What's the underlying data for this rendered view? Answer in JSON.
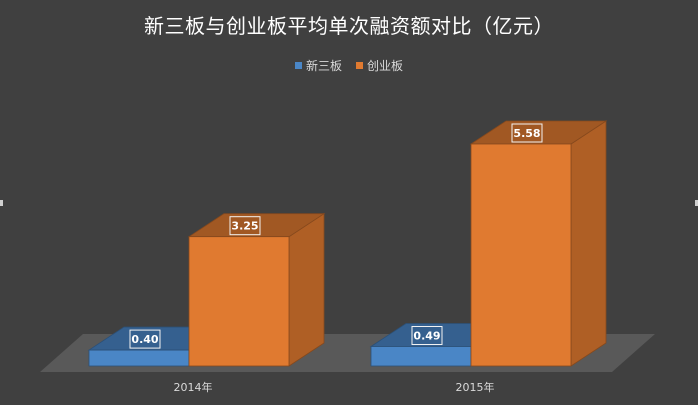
{
  "chart_data": {
    "type": "bar",
    "title": "新三板与创业板平均单次融资额对比（亿元）",
    "categories": [
      "2014年",
      "2015年"
    ],
    "series": [
      {
        "name": "新三板",
        "values": [
          0.4,
          0.49
        ],
        "color": "#4a86c6"
      },
      {
        "name": "创业板",
        "values": [
          3.25,
          5.58
        ],
        "color": "#e07a30"
      }
    ],
    "ylim": [
      0,
      6
    ],
    "xlabel": "",
    "ylabel": "",
    "grid": false,
    "legend_position": "top",
    "style": "3d-column"
  },
  "colors": {
    "background": "#404040",
    "floor": "#595959"
  }
}
